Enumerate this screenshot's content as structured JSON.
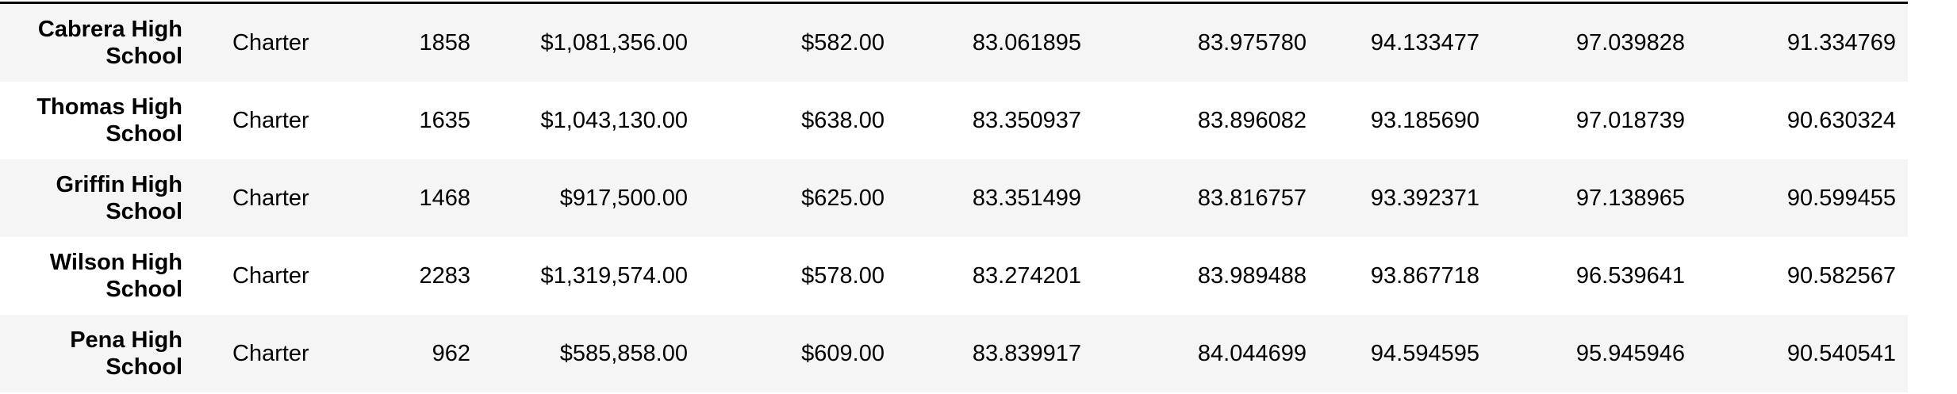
{
  "table": {
    "rows": [
      {
        "school": "Cabrera High School",
        "type": "Charter",
        "size": "1858",
        "budget": "$1,081,356.00",
        "per_capita": "$582.00",
        "avg_math": "83.061895",
        "avg_reading": "83.975780",
        "pct_math": "94.133477",
        "pct_reading": "97.039828",
        "pct_overall": "91.334769"
      },
      {
        "school": "Thomas High School",
        "type": "Charter",
        "size": "1635",
        "budget": "$1,043,130.00",
        "per_capita": "$638.00",
        "avg_math": "83.350937",
        "avg_reading": "83.896082",
        "pct_math": "93.185690",
        "pct_reading": "97.018739",
        "pct_overall": "90.630324"
      },
      {
        "school": "Griffin High School",
        "type": "Charter",
        "size": "1468",
        "budget": "$917,500.00",
        "per_capita": "$625.00",
        "avg_math": "83.351499",
        "avg_reading": "83.816757",
        "pct_math": "93.392371",
        "pct_reading": "97.138965",
        "pct_overall": "90.599455"
      },
      {
        "school": "Wilson High School",
        "type": "Charter",
        "size": "2283",
        "budget": "$1,319,574.00",
        "per_capita": "$578.00",
        "avg_math": "83.274201",
        "avg_reading": "83.989488",
        "pct_math": "93.867718",
        "pct_reading": "96.539641",
        "pct_overall": "90.582567"
      },
      {
        "school": "Pena High School",
        "type": "Charter",
        "size": "962",
        "budget": "$585,858.00",
        "per_capita": "$609.00",
        "avg_math": "83.839917",
        "avg_reading": "84.044699",
        "pct_math": "94.594595",
        "pct_reading": "95.945946",
        "pct_overall": "90.540541"
      }
    ]
  }
}
